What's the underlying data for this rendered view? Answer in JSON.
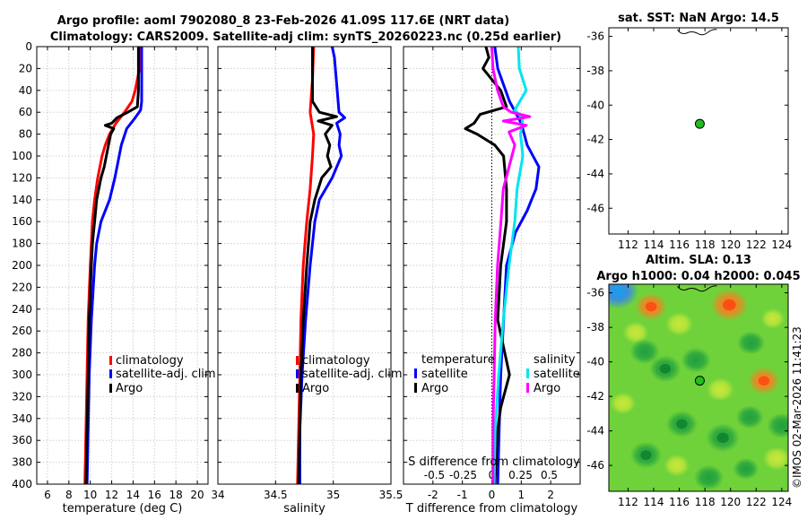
{
  "title_line1": "Argo profile: aoml 7902080_8 23-Feb-2026 41.09S 117.6E (NRT data)",
  "title_line2": "Climatology: CARS2009. Satellite-adj clim: synTS_20260223.nc (0.25d earlier)",
  "colors": {
    "clim": "#ff0000",
    "sat": "#0000ff",
    "argo": "#000000",
    "sal_sat": "#00e5ee",
    "sal_argo": "#ff00ff",
    "marker": "#1fbf1f"
  },
  "chart_data": [
    {
      "id": "temperature",
      "type": "line",
      "xlabel": "temperature (deg C)",
      "ylabel": "",
      "xlim": [
        5,
        21
      ],
      "ylim": [
        400,
        0
      ],
      "xticks": [
        6,
        8,
        10,
        12,
        14,
        16,
        18,
        20
      ],
      "xticklabels": [
        "6",
        "8",
        "10",
        "12",
        "14",
        "16",
        "18",
        "20"
      ],
      "yticks": [
        0,
        20,
        40,
        60,
        80,
        100,
        120,
        140,
        160,
        180,
        200,
        220,
        240,
        260,
        280,
        300,
        320,
        340,
        360,
        380,
        400
      ],
      "legend": [
        "climatology",
        "satellite-adj. clim",
        "Argo"
      ],
      "series": [
        {
          "name": "climatology",
          "color": "clim",
          "depth": [
            0,
            20,
            40,
            50,
            60,
            70,
            80,
            90,
            100,
            120,
            140,
            160,
            180,
            200,
            250,
            300,
            350,
            400
          ],
          "values": [
            14.7,
            14.6,
            14.2,
            13.9,
            13.2,
            12.4,
            11.8,
            11.4,
            11.1,
            10.7,
            10.4,
            10.2,
            10.1,
            10.0,
            9.8,
            9.7,
            9.6,
            9.5
          ]
        },
        {
          "name": "satellite-adj. clim",
          "color": "sat",
          "depth": [
            0,
            40,
            50,
            58,
            65,
            75,
            90,
            100,
            120,
            140,
            160,
            180,
            200,
            250,
            300,
            350,
            400
          ],
          "values": [
            14.8,
            14.8,
            14.8,
            14.7,
            14.2,
            13.4,
            12.9,
            12.7,
            12.3,
            11.8,
            11.0,
            10.6,
            10.4,
            10.1,
            9.9,
            9.8,
            9.7
          ]
        },
        {
          "name": "Argo",
          "color": "argo",
          "depth": [
            0,
            20,
            40,
            55,
            60,
            65,
            70,
            72,
            75,
            80,
            90,
            100,
            110,
            120,
            140,
            160,
            180,
            200,
            250,
            300,
            350,
            400
          ],
          "values": [
            14.5,
            14.5,
            14.5,
            14.4,
            13.5,
            12.5,
            12.0,
            11.4,
            12.2,
            11.9,
            11.7,
            11.5,
            11.3,
            11.0,
            10.6,
            10.4,
            10.2,
            10.1,
            9.9,
            9.8,
            9.7,
            9.6
          ]
        }
      ]
    },
    {
      "id": "salinity",
      "type": "line",
      "xlabel": "salinity",
      "ylabel": "",
      "xlim": [
        34,
        35.5
      ],
      "ylim": [
        400,
        0
      ],
      "xticks": [
        34,
        34.5,
        35,
        35.5
      ],
      "xticklabels": [
        "34",
        "34.5",
        "35",
        "35.5"
      ],
      "legend": [
        "climatology",
        "satellite-adj. clim",
        "Argo"
      ],
      "series": [
        {
          "name": "climatology",
          "color": "clim",
          "depth": [
            0,
            30,
            60,
            80,
            100,
            130,
            160,
            200,
            250,
            300,
            350,
            400
          ],
          "values": [
            34.83,
            34.82,
            34.8,
            34.83,
            34.82,
            34.8,
            34.77,
            34.74,
            34.72,
            34.71,
            34.7,
            34.69
          ],
          "_": ""
        },
        {
          "name": "satellite-adj. clim",
          "color": "sat",
          "depth": [
            0,
            10,
            60,
            65,
            70,
            80,
            90,
            100,
            120,
            140,
            160,
            200,
            250,
            300,
            350,
            400
          ],
          "values": [
            34.99,
            35.01,
            35.05,
            35.1,
            35.03,
            35.06,
            35.05,
            35.07,
            34.99,
            34.88,
            34.84,
            34.8,
            34.76,
            34.73,
            34.71,
            34.71
          ]
        },
        {
          "name": "Argo",
          "color": "argo",
          "depth": [
            0,
            50,
            60,
            64,
            68,
            72,
            80,
            90,
            100,
            110,
            120,
            140,
            160,
            200,
            250,
            300,
            350,
            400
          ],
          "values": [
            34.82,
            34.82,
            34.88,
            35.03,
            34.87,
            34.99,
            34.93,
            34.97,
            34.95,
            34.98,
            34.9,
            34.84,
            34.8,
            34.77,
            34.74,
            34.72,
            34.71,
            34.7
          ]
        }
      ]
    },
    {
      "id": "difference",
      "type": "line",
      "xlabel": "T difference from climatology",
      "xlabel_top": "S difference from climatology",
      "xlim": [
        -3,
        3
      ],
      "ylim": [
        400,
        0
      ],
      "xticks": [
        -2,
        -1,
        0,
        1,
        2
      ],
      "xticklabels": [
        "-2",
        "-1",
        "0",
        "1",
        "2"
      ],
      "sticks": [
        -0.5,
        -0.25,
        0,
        0.25,
        0.5
      ],
      "sticklabels": [
        "-0.5",
        "-0.25",
        "0",
        "0.25",
        "0.5"
      ],
      "legend_t_title": "temperature",
      "legend_s_title": "salinity",
      "legend": [
        "satellite",
        "Argo",
        "satellite",
        "Argo"
      ],
      "series": [
        {
          "name": "temperature satellite",
          "color": "sat",
          "depth": [
            0,
            20,
            50,
            70,
            90,
            110,
            130,
            150,
            170,
            200,
            250,
            300,
            350,
            400
          ],
          "values": [
            0.1,
            0.2,
            0.6,
            1.0,
            1.2,
            1.6,
            1.5,
            1.2,
            0.8,
            0.5,
            0.4,
            0.3,
            0.25,
            0.2
          ]
        },
        {
          "name": "temperature Argo",
          "color": "argo",
          "depth": [
            0,
            10,
            20,
            40,
            55,
            62,
            70,
            75,
            80,
            90,
            100,
            130,
            160,
            200,
            250,
            300,
            330,
            350,
            400
          ],
          "values": [
            -0.2,
            -0.1,
            -0.3,
            0.3,
            0.5,
            -0.4,
            -0.6,
            -0.9,
            -0.5,
            0.1,
            0.4,
            0.5,
            0.5,
            0.3,
            0.2,
            0.6,
            0.3,
            0.2,
            0.1
          ]
        },
        {
          "name": "salinity satellite",
          "color": "sal_sat",
          "depth": [
            0,
            20,
            40,
            58,
            65,
            80,
            100,
            130,
            160,
            200,
            250,
            300,
            350,
            400
          ],
          "values": [
            0.23,
            0.24,
            0.3,
            0.2,
            0.27,
            0.25,
            0.27,
            0.22,
            0.2,
            0.15,
            0.1,
            0.06,
            0.03,
            0.02
          ]
        },
        {
          "name": "salinity Argo",
          "color": "sal_argo",
          "depth": [
            0,
            20,
            40,
            55,
            60,
            64,
            68,
            72,
            78,
            90,
            110,
            130,
            160,
            200,
            250,
            300,
            350,
            400
          ],
          "values": [
            0.0,
            0.01,
            0.05,
            0.1,
            0.17,
            0.33,
            0.1,
            0.3,
            0.15,
            0.2,
            0.15,
            0.1,
            0.08,
            0.05,
            0.03,
            0.02,
            0.01,
            0.01
          ]
        }
      ]
    },
    {
      "id": "sst_map",
      "type": "scatter",
      "title": "sat. SST: NaN Argo: 14.5",
      "xlim": [
        110.5,
        124.5
      ],
      "ylim": [
        -47.5,
        -35.5
      ],
      "xticks": [
        112,
        114,
        116,
        118,
        120,
        122,
        124
      ],
      "xticklabels": [
        "112",
        "114",
        "116",
        "118",
        "120",
        "122",
        "124"
      ],
      "yticks": [
        -36,
        -38,
        -40,
        -42,
        -44,
        -46
      ],
      "yticklabels": [
        "-36",
        "-38",
        "-40",
        "-42",
        "-44",
        "-46"
      ],
      "points": [
        {
          "lon": 117.6,
          "lat": -41.09
        }
      ]
    },
    {
      "id": "sla_map",
      "type": "heatmap",
      "title_line1": "Altim. SLA: 0.13",
      "title_line2": "Argo h1000: 0.04 h2000: 0.045",
      "xlim": [
        110.5,
        124.5
      ],
      "ylim": [
        -47.5,
        -35.5
      ],
      "xticks": [
        112,
        114,
        116,
        118,
        120,
        122,
        124
      ],
      "xticklabels": [
        "112",
        "114",
        "116",
        "118",
        "120",
        "122",
        "124"
      ],
      "yticks": [
        -36,
        -38,
        -40,
        -42,
        -44,
        -46
      ],
      "yticklabels": [
        "-36",
        "-38",
        "-40",
        "-42",
        "-44",
        "-46"
      ],
      "points": [
        {
          "lon": 117.6,
          "lat": -41.09
        }
      ],
      "features": [
        {
          "lon": 111.2,
          "lat": -35.9,
          "val": -0.6
        },
        {
          "lon": 119.9,
          "lat": -36.7,
          "val": 0.5
        },
        {
          "lon": 113.8,
          "lat": -36.8,
          "val": 0.35
        },
        {
          "lon": 116.0,
          "lat": -37.8,
          "val": 0.25
        },
        {
          "lon": 112.6,
          "lat": -38.3,
          "val": 0.2
        },
        {
          "lon": 117.3,
          "lat": -39.9,
          "val": -0.3
        },
        {
          "lon": 114.9,
          "lat": -40.4,
          "val": -0.35
        },
        {
          "lon": 113.3,
          "lat": -39.4,
          "val": -0.3
        },
        {
          "lon": 121.6,
          "lat": -38.9,
          "val": -0.25
        },
        {
          "lon": 119.2,
          "lat": -41.6,
          "val": 0.25
        },
        {
          "lon": 122.6,
          "lat": -41.1,
          "val": 0.35
        },
        {
          "lon": 111.6,
          "lat": -42.4,
          "val": 0.2
        },
        {
          "lon": 116.2,
          "lat": -43.6,
          "val": -0.35
        },
        {
          "lon": 119.4,
          "lat": -44.4,
          "val": -0.4
        },
        {
          "lon": 121.5,
          "lat": -43.2,
          "val": -0.25
        },
        {
          "lon": 113.4,
          "lat": -45.4,
          "val": -0.35
        },
        {
          "lon": 118.3,
          "lat": -46.7,
          "val": -0.3
        },
        {
          "lon": 121.2,
          "lat": -46.2,
          "val": -0.2
        },
        {
          "lon": 123.6,
          "lat": -45.6,
          "val": 0.25
        },
        {
          "lon": 115.8,
          "lat": -46.0,
          "val": 0.2
        },
        {
          "lon": 123.3,
          "lat": -37.5,
          "val": 0.15
        },
        {
          "lon": 124.0,
          "lat": -43.7,
          "val": -0.3
        }
      ]
    }
  ],
  "timestamp": "©IMOS 02-Mar-2026 11:41:23"
}
